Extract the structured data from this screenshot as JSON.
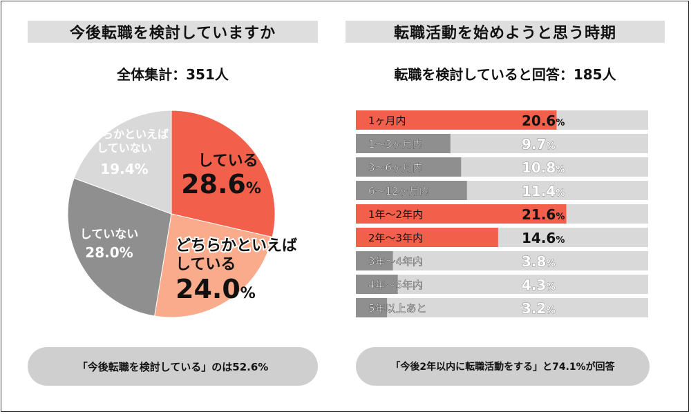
{
  "left": {
    "title": "今後転職を検討していますか",
    "subtitle": "全体集計：351人",
    "summary": "「今後転職を検討している」のは52.6%"
  },
  "right": {
    "title": "転職活動を始めようと思う時期",
    "subtitle": "転職を検討していると回答：185人",
    "summary": "「今後2年以内に転職活動をする」と74.1%が回答"
  },
  "colors": {
    "highlight": "#f2604b",
    "light_orange": "#f9ab8b",
    "gray": "#8f8f8f",
    "light_gray": "#d9d9d9",
    "track": "#d9d9d9"
  },
  "chart_data": [
    {
      "type": "pie",
      "title": "今後転職を検討していますか",
      "unit": "%",
      "slices": [
        {
          "label": "している",
          "value": 28.6,
          "color": "#f2604b"
        },
        {
          "label": "どちらかといえばしている",
          "value": 24.0,
          "color": "#f9ab8b"
        },
        {
          "label": "していない",
          "value": 28.0,
          "color": "#8f8f8f"
        },
        {
          "label": "どちらかといえばしていない",
          "value": 19.4,
          "color": "#d9d9d9"
        }
      ]
    },
    {
      "type": "bar",
      "orientation": "horizontal",
      "title": "転職活動を始めようと思う時期",
      "unit": "%",
      "xlim": [
        0,
        30
      ],
      "categories": [
        "1ヶ月内",
        "1〜3ヶ月内",
        "3〜6ヶ月内",
        "6〜12ヶ月内",
        "1年〜2年内",
        "2年〜3年内",
        "3年〜4年内",
        "4年〜5年内",
        "5年以上あと"
      ],
      "values": [
        20.6,
        9.7,
        10.8,
        11.4,
        21.6,
        14.6,
        3.8,
        4.3,
        3.2
      ],
      "highlight": [
        true,
        false,
        false,
        false,
        true,
        true,
        false,
        false,
        false
      ]
    }
  ]
}
